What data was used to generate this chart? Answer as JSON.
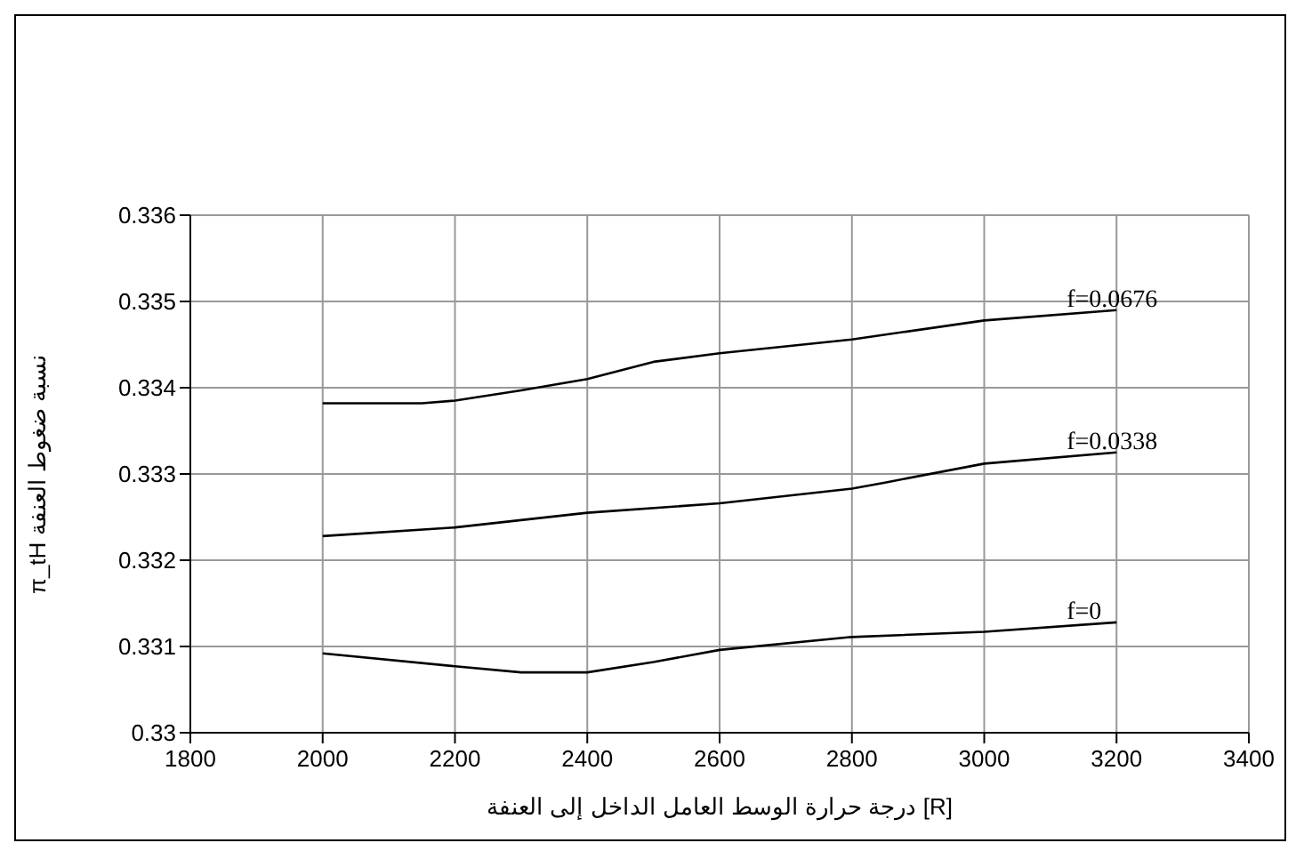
{
  "chart_data": {
    "type": "line",
    "xlabel": "درجة حرارة  الوسط العامل الداخل إلى العنفة [R]",
    "ylabel": "π_tH نسبة ضغوط العنفة",
    "xlim": [
      1800,
      3400
    ],
    "xticks": [
      1800,
      2000,
      2200,
      2400,
      2600,
      2800,
      3000,
      3200,
      3400
    ],
    "ylim": [
      0.33,
      0.336
    ],
    "yticks": [
      0.33,
      0.331,
      0.332,
      0.333,
      0.334,
      0.335,
      0.336
    ],
    "grid": true,
    "legend": false,
    "marker": "none",
    "line_style": "solid",
    "series": [
      {
        "name": "f=0.0676",
        "color": "#000000",
        "x": [
          2000,
          2150,
          2200,
          2300,
          2400,
          2500,
          2600,
          2800,
          3000,
          3200
        ],
        "values": [
          0.33382,
          0.33382,
          0.33385,
          0.33397,
          0.3341,
          0.3343,
          0.3344,
          0.33456,
          0.33478,
          0.3349
        ]
      },
      {
        "name": "f=0.0338",
        "color": "#000000",
        "x": [
          2000,
          2200,
          2400,
          2600,
          2800,
          2850,
          3000,
          3200
        ],
        "values": [
          0.33228,
          0.33238,
          0.33255,
          0.33266,
          0.33283,
          0.3329,
          0.33312,
          0.33325
        ]
      },
      {
        "name": "f=0",
        "color": "#000000",
        "x": [
          2000,
          2200,
          2300,
          2400,
          2500,
          2600,
          2800,
          3000,
          3200
        ],
        "values": [
          0.33092,
          0.33077,
          0.3307,
          0.3307,
          0.33082,
          0.33096,
          0.33111,
          0.33117,
          0.33128
        ]
      }
    ]
  }
}
